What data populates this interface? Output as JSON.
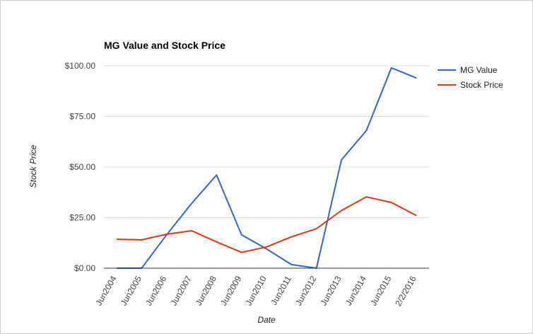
{
  "chart_data": {
    "type": "line",
    "title": "MG Value and Stock Price",
    "xlabel": "Date",
    "ylabel": "Stock Price",
    "categories": [
      "Jun2004",
      "Jun2005",
      "Jun2006",
      "Jun2007",
      "Jun2008",
      "Jun2009",
      "Jun2010",
      "Jun2011",
      "Jun2012",
      "Jun2013",
      "Jun2014",
      "Jun2015",
      "2/2/2016"
    ],
    "yticks": [
      "$0.00",
      "$25.00",
      "$50.00",
      "$75.00",
      "$100.00"
    ],
    "ylim": [
      0,
      100
    ],
    "grid": true,
    "legend_position": "right",
    "series": [
      {
        "name": "MG Value",
        "color": "#3366cc",
        "values": [
          0,
          0,
          16.5,
          32,
          46,
          16.5,
          9.5,
          1.8,
          0,
          53.5,
          68,
          99,
          94
        ]
      },
      {
        "name": "Stock Price",
        "color": "#dc3912",
        "values": [
          14.3,
          14,
          16.8,
          18.5,
          13,
          7.8,
          10.5,
          15.5,
          19.5,
          28.5,
          35.2,
          32.5,
          26
        ]
      }
    ]
  }
}
